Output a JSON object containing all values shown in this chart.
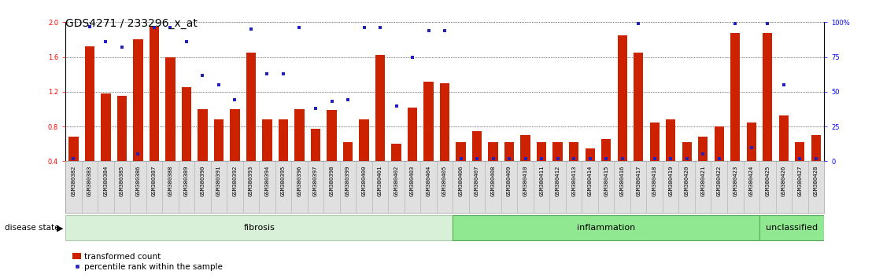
{
  "title": "GDS4271 / 233296_x_at",
  "samples": [
    "GSM380382",
    "GSM380383",
    "GSM380384",
    "GSM380385",
    "GSM380386",
    "GSM380387",
    "GSM380388",
    "GSM380389",
    "GSM380390",
    "GSM380391",
    "GSM380392",
    "GSM380393",
    "GSM380394",
    "GSM380395",
    "GSM380396",
    "GSM380397",
    "GSM380398",
    "GSM380399",
    "GSM380400",
    "GSM380401",
    "GSM380402",
    "GSM380403",
    "GSM380404",
    "GSM380405",
    "GSM380406",
    "GSM380407",
    "GSM380408",
    "GSM380409",
    "GSM380410",
    "GSM380411",
    "GSM380412",
    "GSM380413",
    "GSM380414",
    "GSM380415",
    "GSM380416",
    "GSM380417",
    "GSM380418",
    "GSM380419",
    "GSM380420",
    "GSM380421",
    "GSM380422",
    "GSM380423",
    "GSM380424",
    "GSM380425",
    "GSM380426",
    "GSM380427",
    "GSM380428"
  ],
  "bar_heights": [
    0.68,
    1.72,
    1.18,
    1.15,
    1.8,
    1.95,
    1.6,
    1.25,
    1.0,
    0.88,
    1.0,
    1.65,
    0.88,
    0.88,
    1.0,
    0.77,
    0.99,
    0.62,
    0.88,
    1.62,
    0.6,
    1.02,
    1.32,
    1.3,
    0.62,
    0.75,
    0.62,
    0.62,
    0.7,
    0.62,
    0.62,
    0.62,
    0.55,
    0.66,
    1.85,
    1.65,
    0.85,
    0.88,
    0.62,
    0.68,
    0.8,
    1.88,
    0.85,
    1.88,
    0.93,
    0.62,
    0.7
  ],
  "blue_dots_pct": [
    2,
    97,
    86,
    82,
    5,
    96,
    96,
    86,
    62,
    55,
    44,
    95,
    63,
    63,
    96,
    38,
    43,
    44,
    96,
    96,
    40,
    75,
    94,
    94,
    2,
    2,
    2,
    2,
    2,
    2,
    2,
    2,
    2,
    2,
    2,
    99,
    2,
    2,
    2,
    5,
    2,
    99,
    10,
    99,
    55,
    2,
    2
  ],
  "groups": [
    {
      "label": "fibrosis",
      "start": 0,
      "end": 24,
      "color": "#d8f0d8",
      "border": "#aaccaa"
    },
    {
      "label": "inflammation",
      "start": 24,
      "end": 43,
      "color": "#90e890",
      "border": "#55aa55"
    },
    {
      "label": "unclassified",
      "start": 43,
      "end": 47,
      "color": "#90e890",
      "border": "#55aa55"
    }
  ],
  "ylim_left": [
    0.4,
    2.0
  ],
  "yticks_left": [
    0.4,
    0.8,
    1.2,
    1.6,
    2.0
  ],
  "yticks_right": [
    0,
    25,
    50,
    75,
    100
  ],
  "bar_color": "#cc2200",
  "dot_color": "#2222bb",
  "legend_dot_label": "percentile rank within the sample",
  "legend_bar_label": "transformed count",
  "title_fontsize": 10,
  "tick_fontsize": 6,
  "group_fontsize": 8,
  "label_fontsize": 7.5
}
